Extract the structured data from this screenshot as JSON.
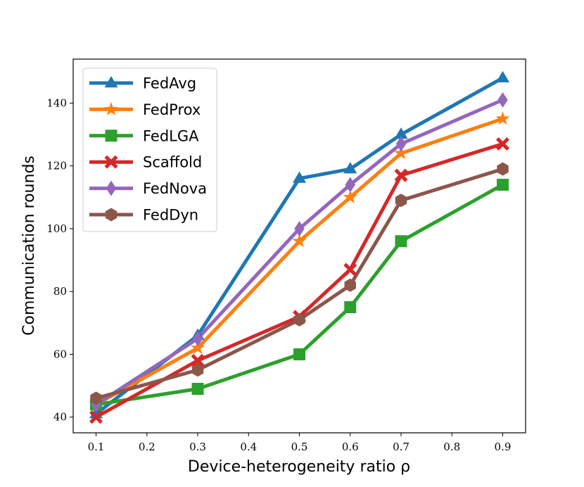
{
  "chart_data": {
    "type": "line",
    "title": "",
    "xlabel": "Device-heterogeneity ratio ρ",
    "ylabel": "Communication rounds",
    "xlim": [
      0.055,
      0.945
    ],
    "ylim": [
      35,
      154
    ],
    "xticks": [
      0.1,
      0.2,
      0.3,
      0.4,
      0.5,
      0.6,
      0.7,
      0.8,
      0.9
    ],
    "xtick_labels": [
      "0.1",
      "0.2",
      "0.3",
      "0.4",
      "0.5",
      "0.6",
      "0.7",
      "0.8",
      "0.9"
    ],
    "yticks": [
      40,
      60,
      80,
      100,
      120,
      140
    ],
    "ytick_labels": [
      "40",
      "60",
      "80",
      "100",
      "120",
      "140"
    ],
    "x": [
      0.1,
      0.3,
      0.5,
      0.6,
      0.7,
      0.9
    ],
    "legend_position": "upper-left",
    "grid": false,
    "series": [
      {
        "name": "FedAvg",
        "color": "#1f77b4",
        "marker": "triangle",
        "values": [
          41,
          66,
          116,
          119,
          130,
          148
        ]
      },
      {
        "name": "FedProx",
        "color": "#ff7f0e",
        "marker": "star",
        "values": [
          44,
          62,
          96,
          110,
          124,
          135
        ]
      },
      {
        "name": "FedLGA",
        "color": "#2ca02c",
        "marker": "square",
        "values": [
          44,
          49,
          60,
          75,
          96,
          114
        ]
      },
      {
        "name": "Scaffold",
        "color": "#d62728",
        "marker": "x",
        "values": [
          40,
          58,
          72,
          87,
          117,
          127
        ]
      },
      {
        "name": "FedNova",
        "color": "#9467bd",
        "marker": "diamond",
        "values": [
          44,
          65,
          100,
          114,
          127,
          141
        ]
      },
      {
        "name": "FedDyn",
        "color": "#8c564b",
        "marker": "hexagon",
        "values": [
          46,
          55,
          71,
          82,
          109,
          119
        ]
      }
    ]
  }
}
